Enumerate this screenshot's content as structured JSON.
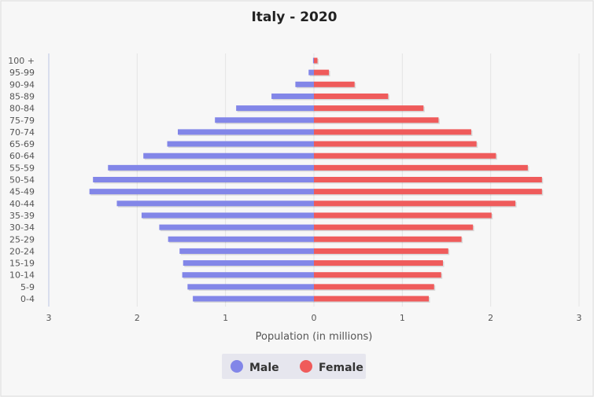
{
  "chart_data": {
    "type": "bar",
    "orientation": "horizontal",
    "title": "Italy - 2020",
    "xlabel": "Population (in millions)",
    "x_ticks": [
      "3",
      "2",
      "1",
      "0",
      "1",
      "2",
      "3"
    ],
    "xlim": [
      -3,
      3
    ],
    "grid": true,
    "legend_position": "bottom",
    "categories": [
      "0-4",
      "5-9",
      "10-14",
      "15-19",
      "20-24",
      "25-29",
      "30-34",
      "35-39",
      "40-44",
      "45-49",
      "50-54",
      "55-59",
      "60-64",
      "65-69",
      "70-74",
      "75-79",
      "80-84",
      "85-89",
      "90-94",
      "95-99",
      "100 +"
    ],
    "series": [
      {
        "name": "Male",
        "color": "#8286e8",
        "values": [
          1.37,
          1.43,
          1.49,
          1.48,
          1.52,
          1.65,
          1.75,
          1.95,
          2.23,
          2.54,
          2.5,
          2.33,
          1.93,
          1.66,
          1.54,
          1.12,
          0.88,
          0.48,
          0.21,
          0.06,
          0.01
        ]
      },
      {
        "name": "Female",
        "color": "#ef5b5b",
        "values": [
          1.3,
          1.36,
          1.44,
          1.46,
          1.52,
          1.67,
          1.8,
          2.01,
          2.28,
          2.58,
          2.58,
          2.42,
          2.06,
          1.84,
          1.78,
          1.41,
          1.24,
          0.84,
          0.46,
          0.17,
          0.04
        ]
      }
    ]
  }
}
